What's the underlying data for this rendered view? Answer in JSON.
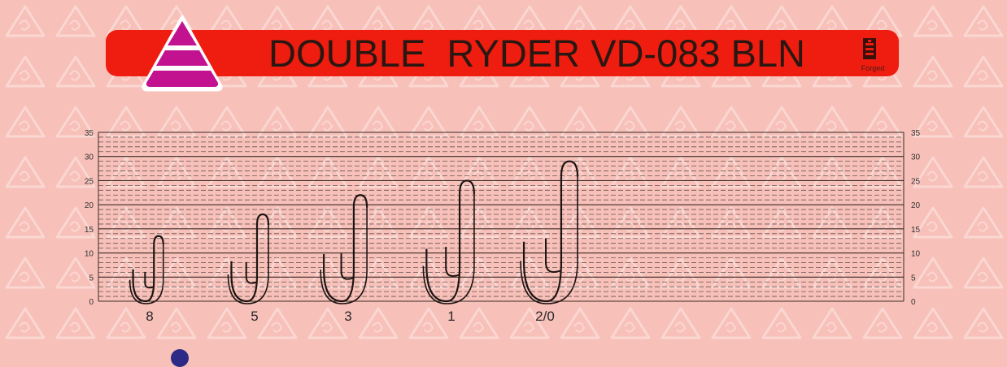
{
  "header": {
    "title": "DOUBLE  RYDER VD-083 BLN",
    "badge_label": "Forged",
    "logo_icon": "triangle-stack-logo-icon",
    "badge_icon": "forged-badge-icon",
    "banner_color": "#ee1d0f",
    "logo_color": "#c2128f"
  },
  "chart_data": {
    "type": "other",
    "title": "",
    "ylim": [
      0,
      35
    ],
    "y_ticks": [
      0,
      5,
      10,
      15,
      20,
      25,
      30,
      35
    ],
    "y_ticks_right": [
      0,
      5,
      10,
      15,
      20,
      25,
      30,
      35
    ],
    "categories": [
      "8",
      "5",
      "3",
      "1",
      "2/0"
    ],
    "values": [
      13.5,
      18,
      22,
      25,
      29
    ],
    "grid": true
  }
}
